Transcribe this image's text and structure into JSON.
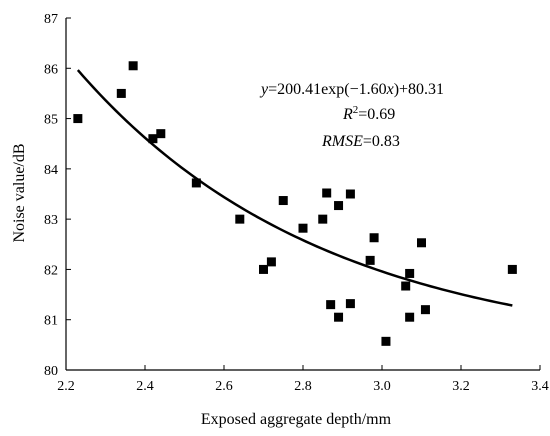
{
  "chart_data": {
    "type": "scatter",
    "xlabel": "Exposed aggregate depth/mm",
    "ylabel": "Noise value/dB",
    "xlim": [
      2.2,
      3.4
    ],
    "ylim": [
      80,
      87
    ],
    "xticks": [
      "2.2",
      "2.4",
      "2.6",
      "2.8",
      "3.0",
      "3.2",
      "3.4"
    ],
    "yticks": [
      "80",
      "81",
      "82",
      "83",
      "84",
      "85",
      "86",
      "87"
    ],
    "grid": false,
    "points": [
      {
        "x": 2.23,
        "y": 85.0
      },
      {
        "x": 2.34,
        "y": 85.5
      },
      {
        "x": 2.37,
        "y": 86.05
      },
      {
        "x": 2.42,
        "y": 84.6
      },
      {
        "x": 2.44,
        "y": 84.7
      },
      {
        "x": 2.53,
        "y": 83.72
      },
      {
        "x": 2.64,
        "y": 83.0
      },
      {
        "x": 2.7,
        "y": 82.0
      },
      {
        "x": 2.72,
        "y": 82.15
      },
      {
        "x": 2.75,
        "y": 83.37
      },
      {
        "x": 2.8,
        "y": 82.82
      },
      {
        "x": 2.85,
        "y": 83.0
      },
      {
        "x": 2.86,
        "y": 83.52
      },
      {
        "x": 2.87,
        "y": 81.3
      },
      {
        "x": 2.89,
        "y": 83.27
      },
      {
        "x": 2.89,
        "y": 81.05
      },
      {
        "x": 2.92,
        "y": 83.5
      },
      {
        "x": 2.92,
        "y": 81.32
      },
      {
        "x": 2.97,
        "y": 82.18
      },
      {
        "x": 2.98,
        "y": 82.63
      },
      {
        "x": 3.01,
        "y": 80.57
      },
      {
        "x": 3.06,
        "y": 81.67
      },
      {
        "x": 3.07,
        "y": 81.92
      },
      {
        "x": 3.07,
        "y": 81.05
      },
      {
        "x": 3.1,
        "y": 82.53
      },
      {
        "x": 3.11,
        "y": 81.2
      },
      {
        "x": 3.33,
        "y": 82.0
      }
    ],
    "fit": {
      "type": "exponential",
      "a": 200.41,
      "b": -1.6,
      "c": 80.31,
      "x_start": 2.23,
      "x_end": 3.33
    },
    "annotations": {
      "equation": {
        "y_var": "y",
        "eq_part1": "=200.41exp(−1.60",
        "x_var": "x",
        "eq_part2": ")+80.31"
      },
      "r2": {
        "r": "R",
        "exp": "2",
        "rest": "=0.69"
      },
      "rmse": {
        "label": "RMSE",
        "rest": "=0.83"
      }
    }
  }
}
